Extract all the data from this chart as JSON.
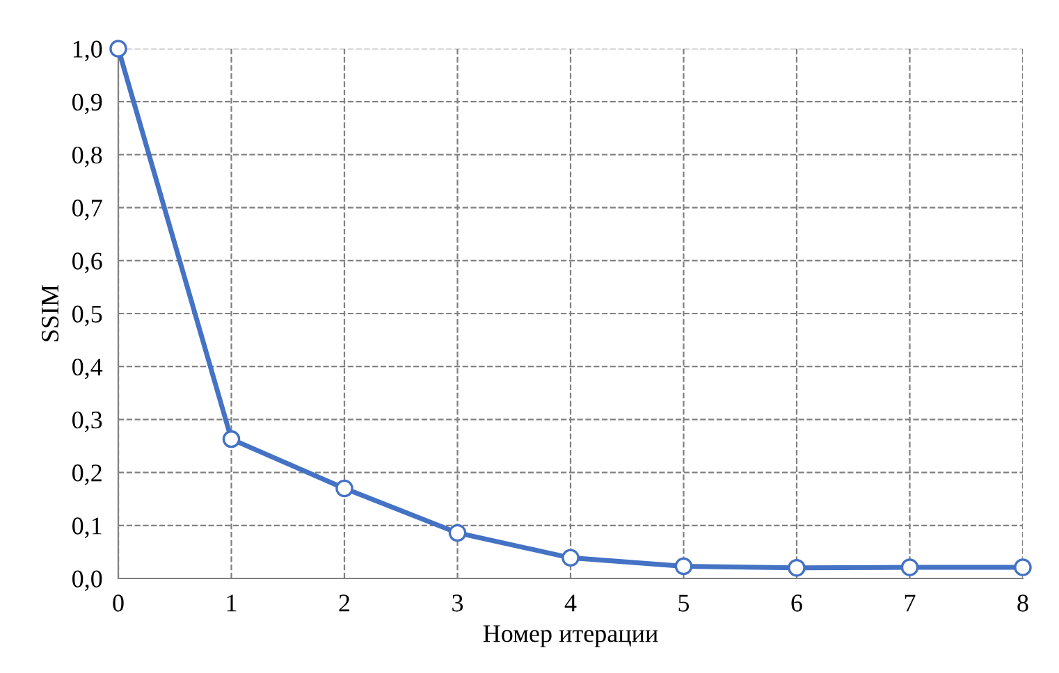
{
  "chart_data": {
    "type": "line",
    "xlabel": "Номер итерации",
    "ylabel": "SSIM",
    "x": [
      0,
      1,
      2,
      3,
      4,
      5,
      6,
      7,
      8
    ],
    "series": [
      {
        "color": "#4472c4",
        "values": [
          1.0,
          0.263,
          0.17,
          0.086,
          0.039,
          0.023,
          0.02,
          0.021,
          0.021
        ]
      }
    ],
    "xlim": [
      0,
      8
    ],
    "xticks": [
      0,
      1,
      2,
      3,
      4,
      5,
      6,
      7,
      8
    ],
    "ylim": [
      0,
      1.0
    ],
    "yticks": [
      {
        "value": 0,
        "label": "0,0"
      },
      {
        "value": 0.1,
        "label": "0,1"
      },
      {
        "value": 0.2,
        "label": "0,2"
      },
      {
        "value": 0.3,
        "label": "0,3"
      },
      {
        "value": 0.4,
        "label": "0,4"
      },
      {
        "value": 0.5,
        "label": "0,5"
      },
      {
        "value": 0.6,
        "label": "0,6"
      },
      {
        "value": 0.7,
        "label": "0,7"
      },
      {
        "value": 0.8,
        "label": "0,8"
      },
      {
        "value": 0.9,
        "label": "0,9"
      },
      {
        "value": 1.0,
        "label": "1,0"
      }
    ],
    "grid": true,
    "marker": "circle",
    "line_style": "solid"
  }
}
